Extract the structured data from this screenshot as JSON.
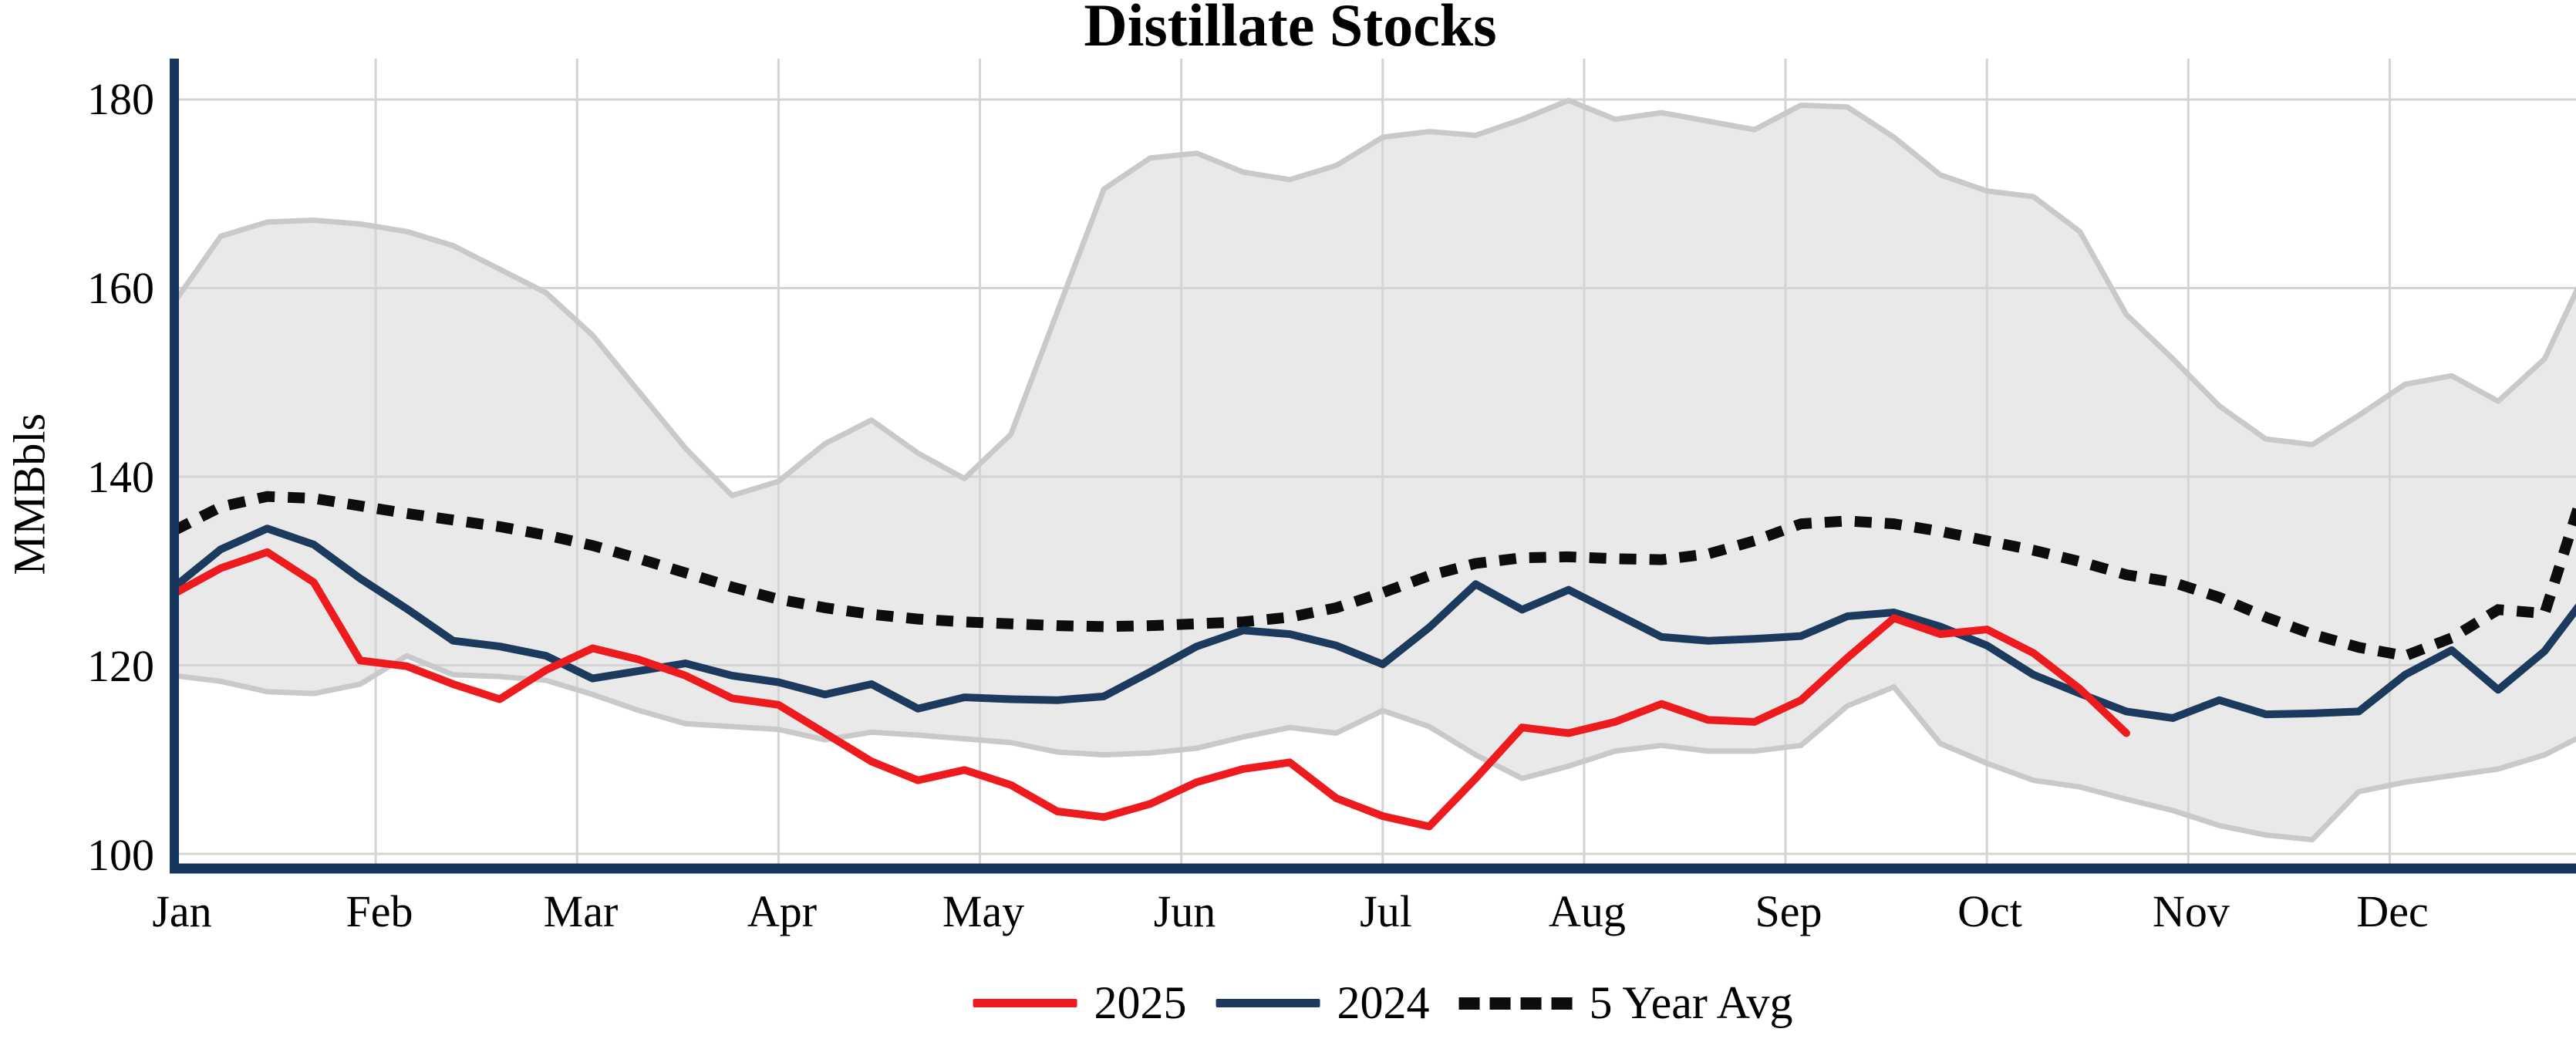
{
  "title": "Distillate Stocks",
  "y_axis": {
    "label": "MMBbls",
    "ticks": [
      "180",
      "160",
      "140",
      "120",
      "100"
    ]
  },
  "x_axis": {
    "months": [
      "Jan",
      "Feb",
      "Mar",
      "Apr",
      "May",
      "Jun",
      "Jul",
      "Aug",
      "Sep",
      "Oct",
      "Nov",
      "Dec"
    ]
  },
  "legend": [
    {
      "label": "2025",
      "color": "#ed1b1e",
      "style": "solid"
    },
    {
      "label": "2024",
      "color": "#1c3a5e",
      "style": "solid"
    },
    {
      "label": "5 Year Avg",
      "color": "#0d0d0d",
      "style": "dotted"
    }
  ],
  "colors": {
    "series_2025": "#ed1b1e",
    "series_2024": "#1c3a5e",
    "series_avg": "#0d0d0d",
    "band_fill": "#e9e9e9",
    "band_edge": "#c9c9c9",
    "gridline": "#d4d4d4",
    "axis_spine": "#16365c",
    "background": "#ffffff"
  },
  "chart_data": {
    "type": "line",
    "title": "Distillate Stocks",
    "ylabel": "MMBbls",
    "xlabel": "",
    "ylim": [
      97,
      183
    ],
    "yticks": [
      180,
      160,
      140,
      120,
      100
    ],
    "x_unit": "week-of-year, 52 weeks Jan-Dec",
    "grid": true,
    "legend_position": "bottom-center",
    "series": [
      {
        "name": "2025",
        "style": "solid",
        "color": "#ed1b1e",
        "values": [
          127.6,
          130.3,
          132.0,
          128.8,
          120.5,
          119.9,
          118.0,
          116.4,
          119.5,
          121.8,
          120.6,
          118.9,
          116.5,
          115.8,
          112.8,
          109.8,
          107.8,
          108.9,
          107.3,
          104.5,
          103.9,
          105.3,
          107.6,
          109.0,
          109.7,
          105.9,
          104.0,
          102.9,
          108.0,
          113.4,
          112.8,
          114.0,
          115.9,
          114.2,
          114.0,
          116.3,
          120.8,
          125.0,
          123.3,
          123.8,
          121.3,
          117.5,
          112.8
        ]
      },
      {
        "name": "2024",
        "style": "solid",
        "color": "#1c3a5e",
        "values": [
          128.3,
          132.3,
          134.5,
          132.8,
          129.2,
          126.0,
          122.6,
          122.0,
          121.0,
          118.6,
          119.4,
          120.2,
          118.9,
          118.2,
          116.9,
          118.0,
          115.4,
          116.6,
          116.4,
          116.3,
          116.7,
          119.3,
          122.0,
          123.7,
          123.3,
          122.1,
          120.1,
          124.0,
          128.6,
          125.9,
          128.0,
          125.5,
          123.0,
          122.6,
          122.8,
          123.1,
          125.2,
          125.6,
          124.1,
          122.1,
          119.0,
          117.0,
          115.1,
          114.4,
          116.3,
          114.8,
          114.9,
          115.1,
          119.0,
          121.6,
          117.4,
          121.5,
          128.0
        ]
      },
      {
        "name": "5 Year Avg",
        "style": "dotted",
        "color": "#0d0d0d",
        "values": [
          134.3,
          136.8,
          137.9,
          137.7,
          136.9,
          136.1,
          135.4,
          134.7,
          133.8,
          132.7,
          131.3,
          129.8,
          128.3,
          127.0,
          126.1,
          125.4,
          124.9,
          124.6,
          124.4,
          124.2,
          124.1,
          124.2,
          124.4,
          124.6,
          125.1,
          126.1,
          127.7,
          129.5,
          130.8,
          131.4,
          131.5,
          131.3,
          131.2,
          131.8,
          133.2,
          135.0,
          135.3,
          135.0,
          134.2,
          133.2,
          132.2,
          131.0,
          129.6,
          128.8,
          127.2,
          125.1,
          123.3,
          121.9,
          121.0,
          122.9,
          125.9,
          125.5,
          141.0
        ]
      }
    ],
    "band": {
      "name": "5 Year Range",
      "fill": "#e9e9e9",
      "edge": "#c9c9c9",
      "upper": [
        158.5,
        165.5,
        167.0,
        167.2,
        166.8,
        166.0,
        164.5,
        162.0,
        159.5,
        155.0,
        149.0,
        143.0,
        138.0,
        139.5,
        143.5,
        146.0,
        142.5,
        139.8,
        144.5,
        157.5,
        170.5,
        173.8,
        174.3,
        172.3,
        171.5,
        173.0,
        176.0,
        176.6,
        176.2,
        177.9,
        179.9,
        177.9,
        178.6,
        177.7,
        176.8,
        179.4,
        179.2,
        176.0,
        172.0,
        170.3,
        169.7,
        166.0,
        157.2,
        152.5,
        147.5,
        144.0,
        143.4,
        146.5,
        149.8,
        150.7,
        148.0,
        152.5,
        163.0
      ],
      "lower": [
        118.9,
        118.3,
        117.2,
        117.0,
        118.0,
        121.0,
        119.0,
        118.8,
        118.4,
        116.9,
        115.2,
        113.8,
        113.5,
        113.2,
        112.1,
        112.9,
        112.6,
        112.2,
        111.8,
        110.8,
        110.5,
        110.7,
        111.2,
        112.4,
        113.4,
        112.8,
        115.2,
        113.5,
        110.5,
        108.0,
        109.3,
        110.9,
        111.5,
        110.9,
        110.9,
        111.5,
        115.7,
        117.7,
        111.7,
        109.6,
        107.8,
        107.1,
        105.8,
        104.6,
        103.0,
        102.0,
        101.5,
        106.6,
        107.6,
        108.3,
        109.0,
        110.5,
        113.0
      ]
    }
  }
}
